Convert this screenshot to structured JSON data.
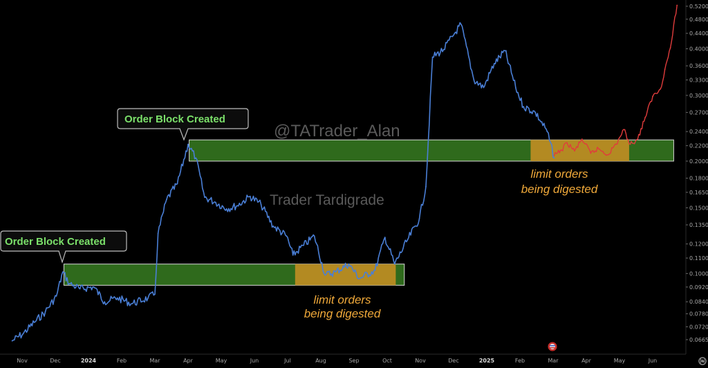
{
  "chart_data": {
    "type": "line",
    "title": "",
    "y_scale": "log",
    "grid": false,
    "y_ticks": [
      "0.5200",
      "0.4800",
      "0.4400",
      "0.4000",
      "0.3600",
      "0.3300",
      "0.3000",
      "0.2700",
      "0.2400",
      "0.2200",
      "0.2000",
      "0.1800",
      "0.1650",
      "0.1500",
      "0.1350",
      "0.1200",
      "0.1100",
      "0.1000",
      "0.0920",
      "0.0840",
      "0.0780",
      "0.0720",
      "0.0665"
    ],
    "x_ticks": [
      "Nov",
      "Dec",
      "2024",
      "Feb",
      "Mar",
      "Apr",
      "May",
      "Jun",
      "Jul",
      "Aug",
      "Sep",
      "Oct",
      "Nov",
      "Dec",
      "2025",
      "Feb",
      "Mar",
      "Apr",
      "May",
      "Jun",
      "Ju"
    ],
    "bold_x_ticks": [
      "2024",
      "2025"
    ],
    "watermarks": [
      "@TATrader_Alan",
      "Trader Tardigrade"
    ],
    "callouts": [
      "Order Block Created",
      "Order Block Created"
    ],
    "annotations": [
      [
        "limit orders",
        "being digested"
      ],
      [
        "limit orders",
        "being digested"
      ]
    ],
    "zones": [
      {
        "type": "order-block",
        "x_start": "2023-12-09",
        "x_end": "2024-10-17",
        "y_low": 0.093,
        "y_high": 0.106,
        "color": "#2f6a1c"
      },
      {
        "type": "digestion",
        "x_start": "2024-07-08",
        "x_end": "2024-10-09",
        "y_low": 0.093,
        "y_high": 0.106,
        "color": "#b38a22"
      },
      {
        "type": "order-block",
        "x_start": "2024-04-02",
        "x_end": "2025-06-20",
        "y_low": 0.2,
        "y_high": 0.228,
        "color": "#2f6a1c"
      },
      {
        "type": "digestion",
        "x_start": "2025-02-10",
        "x_end": "2025-05-10",
        "y_low": 0.2,
        "y_high": 0.228,
        "color": "#b38a22"
      }
    ],
    "series": [
      {
        "color": "#4a7fd6",
        "points": [
          [
            "2023-10-23",
            0.066
          ],
          [
            "2023-11-02",
            0.069
          ],
          [
            "2023-11-12",
            0.074
          ],
          [
            "2023-11-22",
            0.079
          ],
          [
            "2023-12-02",
            0.087
          ],
          [
            "2023-12-08",
            0.101
          ],
          [
            "2023-12-14",
            0.094
          ],
          [
            "2023-12-24",
            0.091
          ],
          [
            "2024-01-06",
            0.092
          ],
          [
            "2024-01-16",
            0.084
          ],
          [
            "2024-01-28",
            0.086
          ],
          [
            "2024-02-10",
            0.083
          ],
          [
            "2024-02-24",
            0.086
          ],
          [
            "2024-03-01",
            0.088
          ],
          [
            "2024-03-04",
            0.128
          ],
          [
            "2024-03-12",
            0.158
          ],
          [
            "2024-03-22",
            0.174
          ],
          [
            "2024-04-01",
            0.222
          ],
          [
            "2024-04-08",
            0.204
          ],
          [
            "2024-04-16",
            0.16
          ],
          [
            "2024-04-26",
            0.155
          ],
          [
            "2024-05-06",
            0.149
          ],
          [
            "2024-05-16",
            0.152
          ],
          [
            "2024-05-28",
            0.161
          ],
          [
            "2024-06-07",
            0.153
          ],
          [
            "2024-06-18",
            0.134
          ],
          [
            "2024-06-30",
            0.126
          ],
          [
            "2024-07-06",
            0.112
          ],
          [
            "2024-07-16",
            0.119
          ],
          [
            "2024-07-26",
            0.126
          ],
          [
            "2024-08-05",
            0.099
          ],
          [
            "2024-08-15",
            0.101
          ],
          [
            "2024-08-27",
            0.106
          ],
          [
            "2024-09-06",
            0.097
          ],
          [
            "2024-09-20",
            0.102
          ],
          [
            "2024-09-29",
            0.125
          ],
          [
            "2024-10-08",
            0.106
          ],
          [
            "2024-10-20",
            0.123
          ],
          [
            "2024-10-31",
            0.14
          ],
          [
            "2024-11-06",
            0.171
          ],
          [
            "2024-11-12",
            0.38
          ],
          [
            "2024-11-22",
            0.398
          ],
          [
            "2024-12-02",
            0.44
          ],
          [
            "2024-12-08",
            0.465
          ],
          [
            "2024-12-20",
            0.33
          ],
          [
            "2024-12-29",
            0.315
          ],
          [
            "2025-01-08",
            0.365
          ],
          [
            "2025-01-18",
            0.395
          ],
          [
            "2025-01-28",
            0.315
          ],
          [
            "2025-02-04",
            0.28
          ],
          [
            "2025-02-14",
            0.27
          ],
          [
            "2025-02-24",
            0.24
          ],
          [
            "2025-03-02",
            0.204
          ]
        ]
      },
      {
        "color": "#e03c3c",
        "points": [
          [
            "2025-03-02",
            0.207
          ],
          [
            "2025-03-09",
            0.214
          ],
          [
            "2025-03-14",
            0.224
          ],
          [
            "2025-03-21",
            0.213
          ],
          [
            "2025-03-28",
            0.229
          ],
          [
            "2025-04-05",
            0.21
          ],
          [
            "2025-04-12",
            0.216
          ],
          [
            "2025-04-20",
            0.208
          ],
          [
            "2025-04-28",
            0.222
          ],
          [
            "2025-05-05",
            0.243
          ],
          [
            "2025-05-11",
            0.222
          ],
          [
            "2025-05-18",
            0.229
          ],
          [
            "2025-05-25",
            0.262
          ],
          [
            "2025-06-01",
            0.298
          ],
          [
            "2025-06-08",
            0.312
          ],
          [
            "2025-06-12",
            0.352
          ],
          [
            "2025-06-17",
            0.402
          ],
          [
            "2025-06-23",
            0.523
          ]
        ]
      }
    ]
  }
}
